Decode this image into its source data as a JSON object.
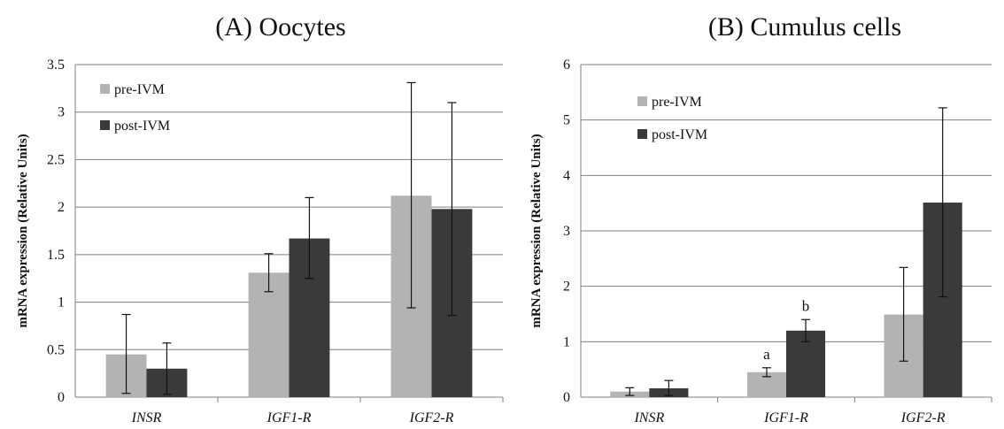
{
  "chart_data": [
    {
      "type": "bar",
      "title": "(A) Oocytes",
      "ylabel": "mRNA expression (Relative Units)",
      "xlabel": "",
      "ylim": [
        0,
        3.5
      ],
      "yticks": [
        "0",
        "0.5",
        "1",
        "1.5",
        "2",
        "2.5",
        "3",
        "3.5"
      ],
      "ytick_values": [
        0,
        0.5,
        1,
        1.5,
        2,
        2.5,
        3,
        3.5
      ],
      "categories": [
        "INSR",
        "IGF1-R",
        "IGF2-R"
      ],
      "grid": true,
      "legend_position": "top-left",
      "series": [
        {
          "name": "pre-IVM",
          "color": "#b3b3b3",
          "values": [
            0.45,
            1.31,
            2.12
          ],
          "err_low": [
            0.04,
            1.11,
            0.94
          ],
          "err_high": [
            0.87,
            1.51,
            3.31
          ]
        },
        {
          "name": "post-IVM",
          "color": "#3a3a3a",
          "values": [
            0.3,
            1.67,
            1.98
          ],
          "err_low": [
            0.03,
            1.25,
            0.86
          ],
          "err_high": [
            0.57,
            2.1,
            3.1
          ]
        }
      ],
      "annotations": []
    },
    {
      "type": "bar",
      "title": "(B) Cumulus cells",
      "ylabel": "mRNA  expression (Relative Units)",
      "xlabel": "",
      "ylim": [
        0,
        6
      ],
      "yticks": [
        "0",
        "1",
        "2",
        "3",
        "4",
        "5",
        "6"
      ],
      "ytick_values": [
        0,
        1,
        2,
        3,
        4,
        5,
        6
      ],
      "categories": [
        "INSR",
        "IGF1-R",
        "IGF2-R"
      ],
      "grid": true,
      "legend_position": "top-left",
      "series": [
        {
          "name": "pre-IVM",
          "color": "#b3b3b3",
          "values": [
            0.1,
            0.45,
            1.49
          ],
          "err_low": [
            0.03,
            0.37,
            0.65
          ],
          "err_high": [
            0.17,
            0.53,
            2.34
          ]
        },
        {
          "name": "post-IVM",
          "color": "#3a3a3a",
          "values": [
            0.16,
            1.2,
            3.51
          ],
          "err_low": [
            0.03,
            1.0,
            1.81
          ],
          "err_high": [
            0.3,
            1.4,
            5.22
          ]
        }
      ],
      "annotations": [
        {
          "text": "a",
          "category_index": 1,
          "series_index": 0
        },
        {
          "text": "b",
          "category_index": 1,
          "series_index": 1
        }
      ]
    }
  ]
}
